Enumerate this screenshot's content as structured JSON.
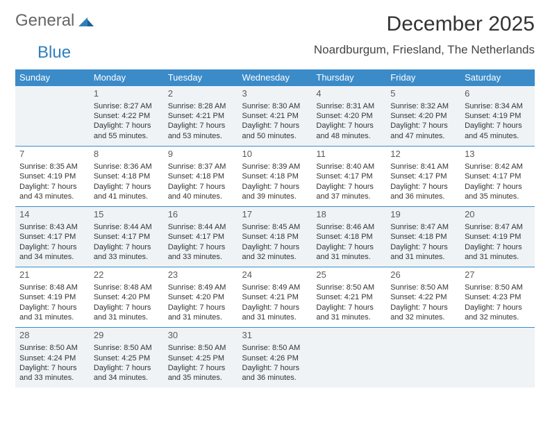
{
  "logo": {
    "word1": "General",
    "word2": "Blue"
  },
  "title": "December 2025",
  "location": "Noardburgum, Friesland, The Netherlands",
  "colors": {
    "header_bg": "#3b8bc9",
    "header_text": "#ffffff",
    "shade_bg": "#eff3f6",
    "rule": "#3b8bc9",
    "logo_gray": "#666666",
    "logo_blue": "#2f7fbc",
    "text": "#333333"
  },
  "day_headers": [
    "Sunday",
    "Monday",
    "Tuesday",
    "Wednesday",
    "Thursday",
    "Friday",
    "Saturday"
  ],
  "weeks": [
    [
      null,
      {
        "n": "1",
        "sr": "Sunrise: 8:27 AM",
        "ss": "Sunset: 4:22 PM",
        "d1": "Daylight: 7 hours",
        "d2": "and 55 minutes."
      },
      {
        "n": "2",
        "sr": "Sunrise: 8:28 AM",
        "ss": "Sunset: 4:21 PM",
        "d1": "Daylight: 7 hours",
        "d2": "and 53 minutes."
      },
      {
        "n": "3",
        "sr": "Sunrise: 8:30 AM",
        "ss": "Sunset: 4:21 PM",
        "d1": "Daylight: 7 hours",
        "d2": "and 50 minutes."
      },
      {
        "n": "4",
        "sr": "Sunrise: 8:31 AM",
        "ss": "Sunset: 4:20 PM",
        "d1": "Daylight: 7 hours",
        "d2": "and 48 minutes."
      },
      {
        "n": "5",
        "sr": "Sunrise: 8:32 AM",
        "ss": "Sunset: 4:20 PM",
        "d1": "Daylight: 7 hours",
        "d2": "and 47 minutes."
      },
      {
        "n": "6",
        "sr": "Sunrise: 8:34 AM",
        "ss": "Sunset: 4:19 PM",
        "d1": "Daylight: 7 hours",
        "d2": "and 45 minutes."
      }
    ],
    [
      {
        "n": "7",
        "sr": "Sunrise: 8:35 AM",
        "ss": "Sunset: 4:19 PM",
        "d1": "Daylight: 7 hours",
        "d2": "and 43 minutes."
      },
      {
        "n": "8",
        "sr": "Sunrise: 8:36 AM",
        "ss": "Sunset: 4:18 PM",
        "d1": "Daylight: 7 hours",
        "d2": "and 41 minutes."
      },
      {
        "n": "9",
        "sr": "Sunrise: 8:37 AM",
        "ss": "Sunset: 4:18 PM",
        "d1": "Daylight: 7 hours",
        "d2": "and 40 minutes."
      },
      {
        "n": "10",
        "sr": "Sunrise: 8:39 AM",
        "ss": "Sunset: 4:18 PM",
        "d1": "Daylight: 7 hours",
        "d2": "and 39 minutes."
      },
      {
        "n": "11",
        "sr": "Sunrise: 8:40 AM",
        "ss": "Sunset: 4:17 PM",
        "d1": "Daylight: 7 hours",
        "d2": "and 37 minutes."
      },
      {
        "n": "12",
        "sr": "Sunrise: 8:41 AM",
        "ss": "Sunset: 4:17 PM",
        "d1": "Daylight: 7 hours",
        "d2": "and 36 minutes."
      },
      {
        "n": "13",
        "sr": "Sunrise: 8:42 AM",
        "ss": "Sunset: 4:17 PM",
        "d1": "Daylight: 7 hours",
        "d2": "and 35 minutes."
      }
    ],
    [
      {
        "n": "14",
        "sr": "Sunrise: 8:43 AM",
        "ss": "Sunset: 4:17 PM",
        "d1": "Daylight: 7 hours",
        "d2": "and 34 minutes."
      },
      {
        "n": "15",
        "sr": "Sunrise: 8:44 AM",
        "ss": "Sunset: 4:17 PM",
        "d1": "Daylight: 7 hours",
        "d2": "and 33 minutes."
      },
      {
        "n": "16",
        "sr": "Sunrise: 8:44 AM",
        "ss": "Sunset: 4:17 PM",
        "d1": "Daylight: 7 hours",
        "d2": "and 33 minutes."
      },
      {
        "n": "17",
        "sr": "Sunrise: 8:45 AM",
        "ss": "Sunset: 4:18 PM",
        "d1": "Daylight: 7 hours",
        "d2": "and 32 minutes."
      },
      {
        "n": "18",
        "sr": "Sunrise: 8:46 AM",
        "ss": "Sunset: 4:18 PM",
        "d1": "Daylight: 7 hours",
        "d2": "and 31 minutes."
      },
      {
        "n": "19",
        "sr": "Sunrise: 8:47 AM",
        "ss": "Sunset: 4:18 PM",
        "d1": "Daylight: 7 hours",
        "d2": "and 31 minutes."
      },
      {
        "n": "20",
        "sr": "Sunrise: 8:47 AM",
        "ss": "Sunset: 4:19 PM",
        "d1": "Daylight: 7 hours",
        "d2": "and 31 minutes."
      }
    ],
    [
      {
        "n": "21",
        "sr": "Sunrise: 8:48 AM",
        "ss": "Sunset: 4:19 PM",
        "d1": "Daylight: 7 hours",
        "d2": "and 31 minutes."
      },
      {
        "n": "22",
        "sr": "Sunrise: 8:48 AM",
        "ss": "Sunset: 4:20 PM",
        "d1": "Daylight: 7 hours",
        "d2": "and 31 minutes."
      },
      {
        "n": "23",
        "sr": "Sunrise: 8:49 AM",
        "ss": "Sunset: 4:20 PM",
        "d1": "Daylight: 7 hours",
        "d2": "and 31 minutes."
      },
      {
        "n": "24",
        "sr": "Sunrise: 8:49 AM",
        "ss": "Sunset: 4:21 PM",
        "d1": "Daylight: 7 hours",
        "d2": "and 31 minutes."
      },
      {
        "n": "25",
        "sr": "Sunrise: 8:50 AM",
        "ss": "Sunset: 4:21 PM",
        "d1": "Daylight: 7 hours",
        "d2": "and 31 minutes."
      },
      {
        "n": "26",
        "sr": "Sunrise: 8:50 AM",
        "ss": "Sunset: 4:22 PM",
        "d1": "Daylight: 7 hours",
        "d2": "and 32 minutes."
      },
      {
        "n": "27",
        "sr": "Sunrise: 8:50 AM",
        "ss": "Sunset: 4:23 PM",
        "d1": "Daylight: 7 hours",
        "d2": "and 32 minutes."
      }
    ],
    [
      {
        "n": "28",
        "sr": "Sunrise: 8:50 AM",
        "ss": "Sunset: 4:24 PM",
        "d1": "Daylight: 7 hours",
        "d2": "and 33 minutes."
      },
      {
        "n": "29",
        "sr": "Sunrise: 8:50 AM",
        "ss": "Sunset: 4:25 PM",
        "d1": "Daylight: 7 hours",
        "d2": "and 34 minutes."
      },
      {
        "n": "30",
        "sr": "Sunrise: 8:50 AM",
        "ss": "Sunset: 4:25 PM",
        "d1": "Daylight: 7 hours",
        "d2": "and 35 minutes."
      },
      {
        "n": "31",
        "sr": "Sunrise: 8:50 AM",
        "ss": "Sunset: 4:26 PM",
        "d1": "Daylight: 7 hours",
        "d2": "and 36 minutes."
      },
      null,
      null,
      null
    ]
  ],
  "shaded_rows": [
    0,
    2,
    4
  ]
}
